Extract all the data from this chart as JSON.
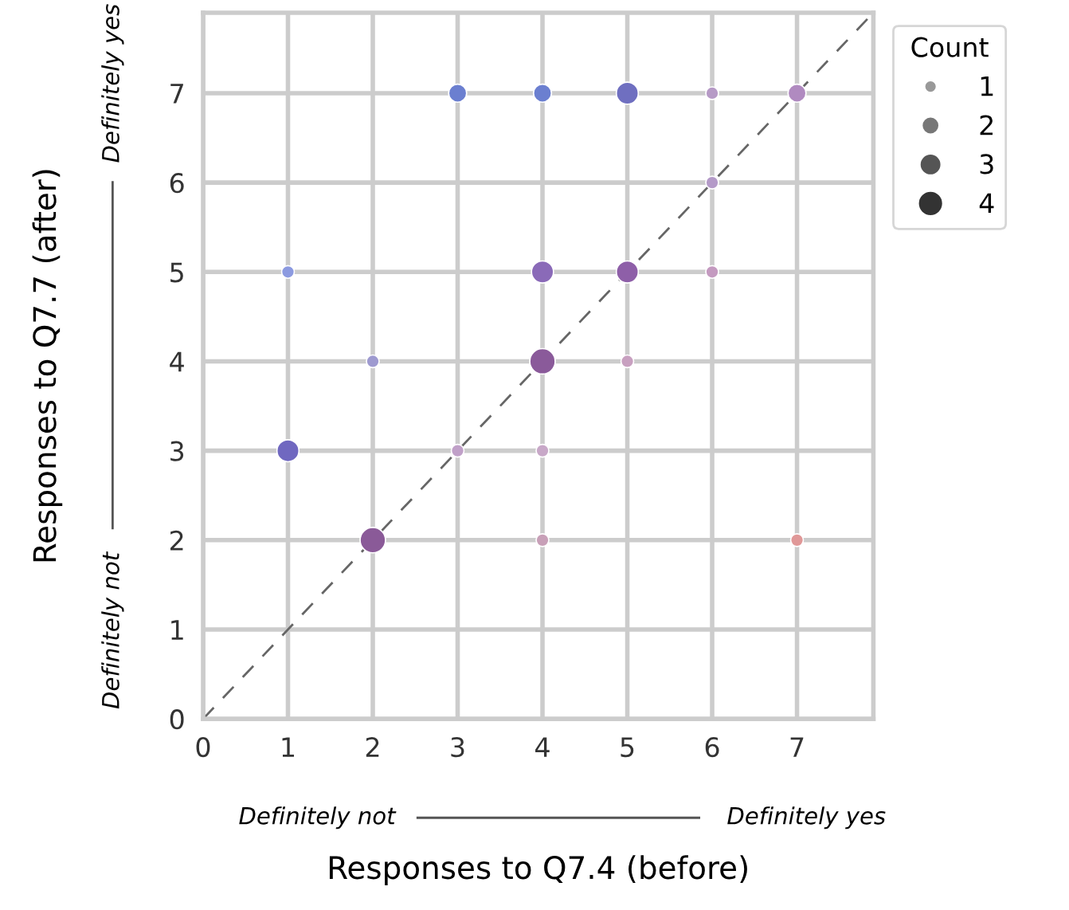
{
  "chart_data": {
    "type": "bubble",
    "xlabel": "Responses to Q7.4 (before)",
    "ylabel": "Responses to Q7.7 (after)",
    "legend_title": "Count",
    "grid": true,
    "xlim": [
      0,
      7.9
    ],
    "ylim": [
      0,
      7.9
    ],
    "xticks": [
      0,
      1,
      2,
      3,
      4,
      5,
      6,
      7
    ],
    "yticks": [
      0,
      1,
      2,
      3,
      4,
      5,
      6,
      7
    ],
    "size_legend": [
      1,
      2,
      3,
      4
    ],
    "annotations": [
      "Definitely not",
      "Definitely yes",
      "Definitely not",
      "Definitely yes"
    ],
    "series": [
      {
        "x": [
          3,
          4,
          5,
          6,
          7,
          6,
          1,
          4,
          5,
          6,
          2,
          4,
          5,
          1,
          3,
          4,
          2,
          4,
          7
        ],
        "values": [
          7,
          7,
          7,
          7,
          7,
          6,
          5,
          5,
          5,
          5,
          4,
          4,
          4,
          3,
          3,
          3,
          2,
          2,
          2
        ],
        "sizes": [
          2,
          2,
          3,
          1,
          2,
          1,
          1,
          3,
          3,
          1,
          1,
          4,
          1,
          3,
          1,
          1,
          4,
          1,
          1
        ],
        "colors": [
          "#6b7fd0",
          "#6b7fd0",
          "#6f6fc0",
          "#b69ac6",
          "#b08ac0",
          "#b49ac8",
          "#8c9ae0",
          "#8a6ab8",
          "#8e5fa8",
          "#c49ac0",
          "#9e9ad0",
          "#8a5a9a",
          "#c8a0c0",
          "#7068c0",
          "#c0a0c8",
          "#c8a8c8",
          "#8a5a98",
          "#c8a0b8",
          "#e09898"
        ]
      },
      {
        "type": "line",
        "x": [
          0,
          7.9
        ],
        "values": [
          0,
          7.9
        ],
        "color": "#666666",
        "line_style": "dashed"
      }
    ]
  }
}
